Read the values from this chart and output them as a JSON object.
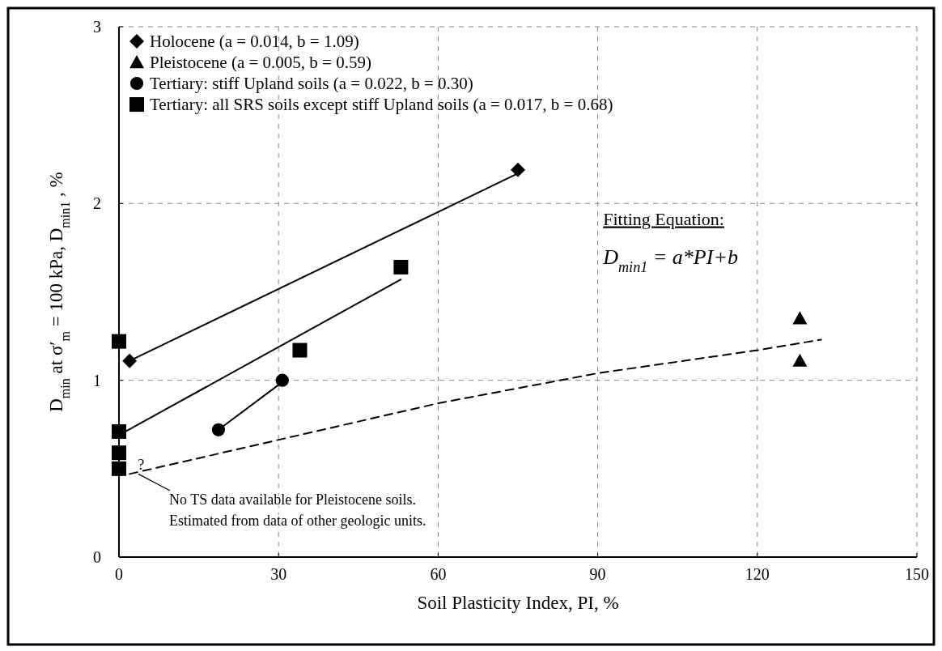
{
  "chart_data": {
    "type": "scatter",
    "xlabel": "Soil Plasticity Index, PI, %",
    "ylabel": "D$_{min}$ at σ′$_{m}$ = 100 kPa, D$_{min1}$, %",
    "xlim": [
      0,
      150
    ],
    "xticks": [
      0,
      30,
      60,
      90,
      120,
      150
    ],
    "ylim": [
      0,
      3
    ],
    "yticks": [
      0,
      1,
      2,
      3
    ],
    "grid": true,
    "legend": "top left",
    "series": [
      {
        "name": "Holocene (a = 0.014, b = 1.09)",
        "marker": "diamond",
        "color": "#000000",
        "x": [
          2,
          75
        ],
        "values": [
          1.11,
          2.19
        ]
      },
      {
        "name": "Pleistocene (a = 0.005, b = 0.59)",
        "marker": "triangle",
        "color": "#000000",
        "x": [
          128,
          128
        ],
        "values": [
          1.35,
          1.11
        ]
      },
      {
        "name": "Tertiary: stiff Upland soils (a = 0.022, b = 0.30)",
        "marker": "circle",
        "color": "#000000",
        "x": [
          18.7,
          30.7
        ],
        "values": [
          0.72,
          1.0
        ]
      },
      {
        "name": "Tertiary: all SRS soils except stiff Upland soils (a = 0.017, b = 0.68)",
        "marker": "square",
        "color": "#000000",
        "x": [
          0,
          0,
          0,
          0,
          34,
          53
        ],
        "values": [
          1.22,
          0.71,
          0.59,
          0.5,
          1.17,
          1.64
        ]
      },
      {
        "type": "line",
        "marker": "none",
        "line_style": "solid",
        "color": "#000000",
        "x": [
          2,
          75
        ],
        "values": [
          1.11,
          2.17
        ]
      },
      {
        "type": "line",
        "marker": "none",
        "line_style": "solid",
        "color": "#000000",
        "x": [
          0,
          53
        ],
        "values": [
          0.69,
          1.57
        ]
      },
      {
        "type": "line",
        "marker": "none",
        "line_style": "solid",
        "color": "#000000",
        "x": [
          18.7,
          30.7
        ],
        "values": [
          0.72,
          0.99
        ]
      },
      {
        "type": "line",
        "marker": "none",
        "line_style": "dashed",
        "color": "#000000",
        "x": [
          2,
          60,
          90,
          120,
          132
        ],
        "values": [
          0.47,
          0.87,
          1.04,
          1.17,
          1.23
        ]
      }
    ],
    "annotations": [
      {
        "text": "?",
        "x": 2,
        "y": 0.52
      },
      "No TS data available for Pleistocene soils.\nEstimated from data of other geologic units.",
      "Fitting Equation:",
      "D$_{min1}$ = a*PI+b"
    ]
  }
}
